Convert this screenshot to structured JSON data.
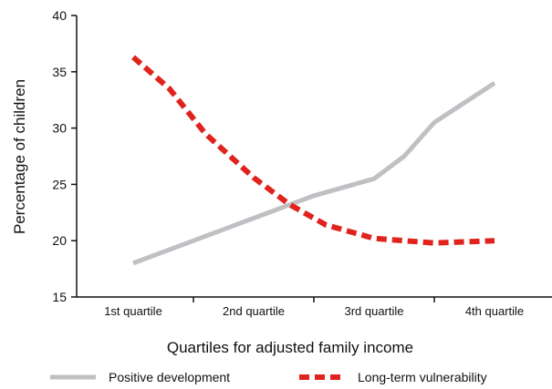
{
  "chart_data": {
    "type": "line",
    "categories": [
      "1st quartile",
      "2nd quartile",
      "3rd quartile",
      "4th quartile"
    ],
    "xlabel": "Quartiles for adjusted family income",
    "ylabel": "Percentage of children",
    "ylim": [
      15,
      40
    ],
    "yticks": [
      15,
      20,
      25,
      30,
      35,
      40
    ],
    "grid": false,
    "legend_position": "bottom",
    "series": [
      {
        "name": "Positive development",
        "color": "#c0c0c4",
        "style": "solid",
        "x": [
          0,
          0.5,
          1,
          1.5,
          2,
          2.25,
          2.5,
          3
        ],
        "values": [
          18.0,
          20.0,
          22.0,
          24.0,
          25.5,
          27.5,
          30.5,
          34.0
        ]
      },
      {
        "name": "Long-term vulnerability",
        "color": "#e0231c",
        "style": "dashed",
        "x": [
          0,
          0.3,
          0.6,
          1,
          1.3,
          1.6,
          2,
          2.5,
          3
        ],
        "values": [
          36.3,
          33.5,
          29.5,
          25.6,
          23.2,
          21.4,
          20.2,
          19.8,
          20.0
        ]
      }
    ]
  }
}
